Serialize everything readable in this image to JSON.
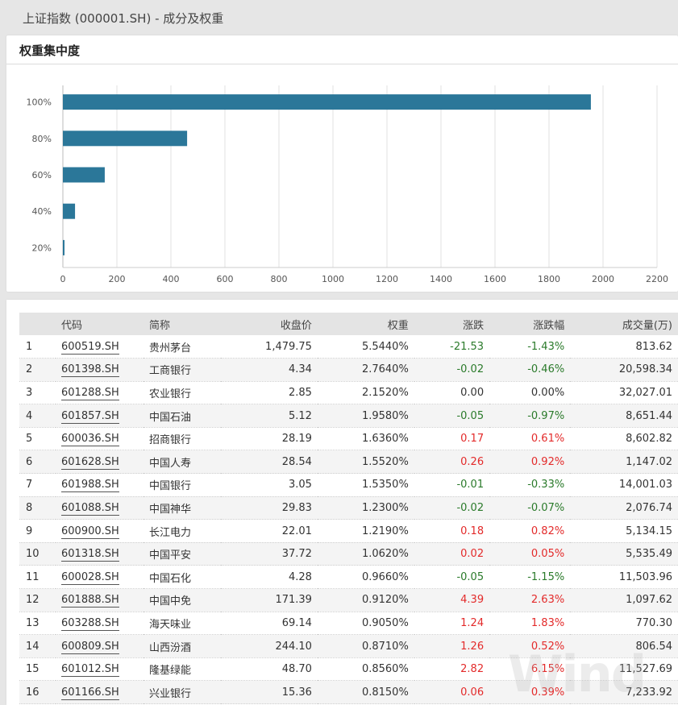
{
  "window": {
    "title": "上证指数 (000001.SH) - 成分及权重"
  },
  "chart_panel": {
    "title": "权重集中度"
  },
  "chart_data": {
    "type": "bar",
    "orientation": "horizontal",
    "categories": [
      "100%",
      "80%",
      "60%",
      "40%",
      "20%"
    ],
    "values": [
      1955,
      460,
      155,
      45,
      5
    ],
    "title": "",
    "xlabel": "",
    "ylabel": "",
    "xlim": [
      0,
      2200
    ],
    "x_ticks": [
      0,
      200,
      400,
      600,
      800,
      1000,
      1200,
      1400,
      1600,
      1800,
      2000,
      2200
    ],
    "grid": true,
    "bar_color": "#2b7799"
  },
  "table": {
    "columns": [
      "",
      "代码",
      "简称",
      "收盘价",
      "权重",
      "涨跌",
      "涨跌幅",
      "成交量(万)"
    ],
    "rows": [
      {
        "idx": "1",
        "code": "600519.SH",
        "name": "贵州茅台",
        "close": "1,479.75",
        "weight": "5.5440%",
        "change": "-21.53",
        "pct": "-1.43%",
        "volume": "813.62",
        "dir": "down"
      },
      {
        "idx": "2",
        "code": "601398.SH",
        "name": "工商银行",
        "close": "4.34",
        "weight": "2.7640%",
        "change": "-0.02",
        "pct": "-0.46%",
        "volume": "20,598.34",
        "dir": "down"
      },
      {
        "idx": "3",
        "code": "601288.SH",
        "name": "农业银行",
        "close": "2.85",
        "weight": "2.1520%",
        "change": "0.00",
        "pct": "0.00%",
        "volume": "32,027.01",
        "dir": "flat"
      },
      {
        "idx": "4",
        "code": "601857.SH",
        "name": "中国石油",
        "close": "5.12",
        "weight": "1.9580%",
        "change": "-0.05",
        "pct": "-0.97%",
        "volume": "8,651.44",
        "dir": "down"
      },
      {
        "idx": "5",
        "code": "600036.SH",
        "name": "招商银行",
        "close": "28.19",
        "weight": "1.6360%",
        "change": "0.17",
        "pct": "0.61%",
        "volume": "8,602.82",
        "dir": "up"
      },
      {
        "idx": "6",
        "code": "601628.SH",
        "name": "中国人寿",
        "close": "28.54",
        "weight": "1.5520%",
        "change": "0.26",
        "pct": "0.92%",
        "volume": "1,147.02",
        "dir": "up"
      },
      {
        "idx": "7",
        "code": "601988.SH",
        "name": "中国银行",
        "close": "3.05",
        "weight": "1.5350%",
        "change": "-0.01",
        "pct": "-0.33%",
        "volume": "14,001.03",
        "dir": "down"
      },
      {
        "idx": "8",
        "code": "601088.SH",
        "name": "中国神华",
        "close": "29.83",
        "weight": "1.2300%",
        "change": "-0.02",
        "pct": "-0.07%",
        "volume": "2,076.74",
        "dir": "down"
      },
      {
        "idx": "9",
        "code": "600900.SH",
        "name": "长江电力",
        "close": "22.01",
        "weight": "1.2190%",
        "change": "0.18",
        "pct": "0.82%",
        "volume": "5,134.15",
        "dir": "up"
      },
      {
        "idx": "10",
        "code": "601318.SH",
        "name": "中国平安",
        "close": "37.72",
        "weight": "1.0620%",
        "change": "0.02",
        "pct": "0.05%",
        "volume": "5,535.49",
        "dir": "up"
      },
      {
        "idx": "11",
        "code": "600028.SH",
        "name": "中国石化",
        "close": "4.28",
        "weight": "0.9660%",
        "change": "-0.05",
        "pct": "-1.15%",
        "volume": "11,503.96",
        "dir": "down"
      },
      {
        "idx": "12",
        "code": "601888.SH",
        "name": "中国中免",
        "close": "171.39",
        "weight": "0.9120%",
        "change": "4.39",
        "pct": "2.63%",
        "volume": "1,097.62",
        "dir": "up"
      },
      {
        "idx": "13",
        "code": "603288.SH",
        "name": "海天味业",
        "close": "69.14",
        "weight": "0.9050%",
        "change": "1.24",
        "pct": "1.83%",
        "volume": "770.30",
        "dir": "up"
      },
      {
        "idx": "14",
        "code": "600809.SH",
        "name": "山西汾酒",
        "close": "244.10",
        "weight": "0.8710%",
        "change": "1.26",
        "pct": "0.52%",
        "volume": "806.54",
        "dir": "up"
      },
      {
        "idx": "15",
        "code": "601012.SH",
        "name": "隆基绿能",
        "close": "48.70",
        "weight": "0.8560%",
        "change": "2.82",
        "pct": "6.15%",
        "volume": "11,527.69",
        "dir": "up"
      },
      {
        "idx": "16",
        "code": "601166.SH",
        "name": "兴业银行",
        "close": "15.36",
        "weight": "0.8150%",
        "change": "0.06",
        "pct": "0.39%",
        "volume": "7,233.92",
        "dir": "up"
      }
    ]
  },
  "watermark": "Wind",
  "colors": {
    "up": "#e32a2a",
    "down": "#2a7a2a",
    "bar": "#2b7799",
    "header_bg": "#e4e4e4"
  }
}
